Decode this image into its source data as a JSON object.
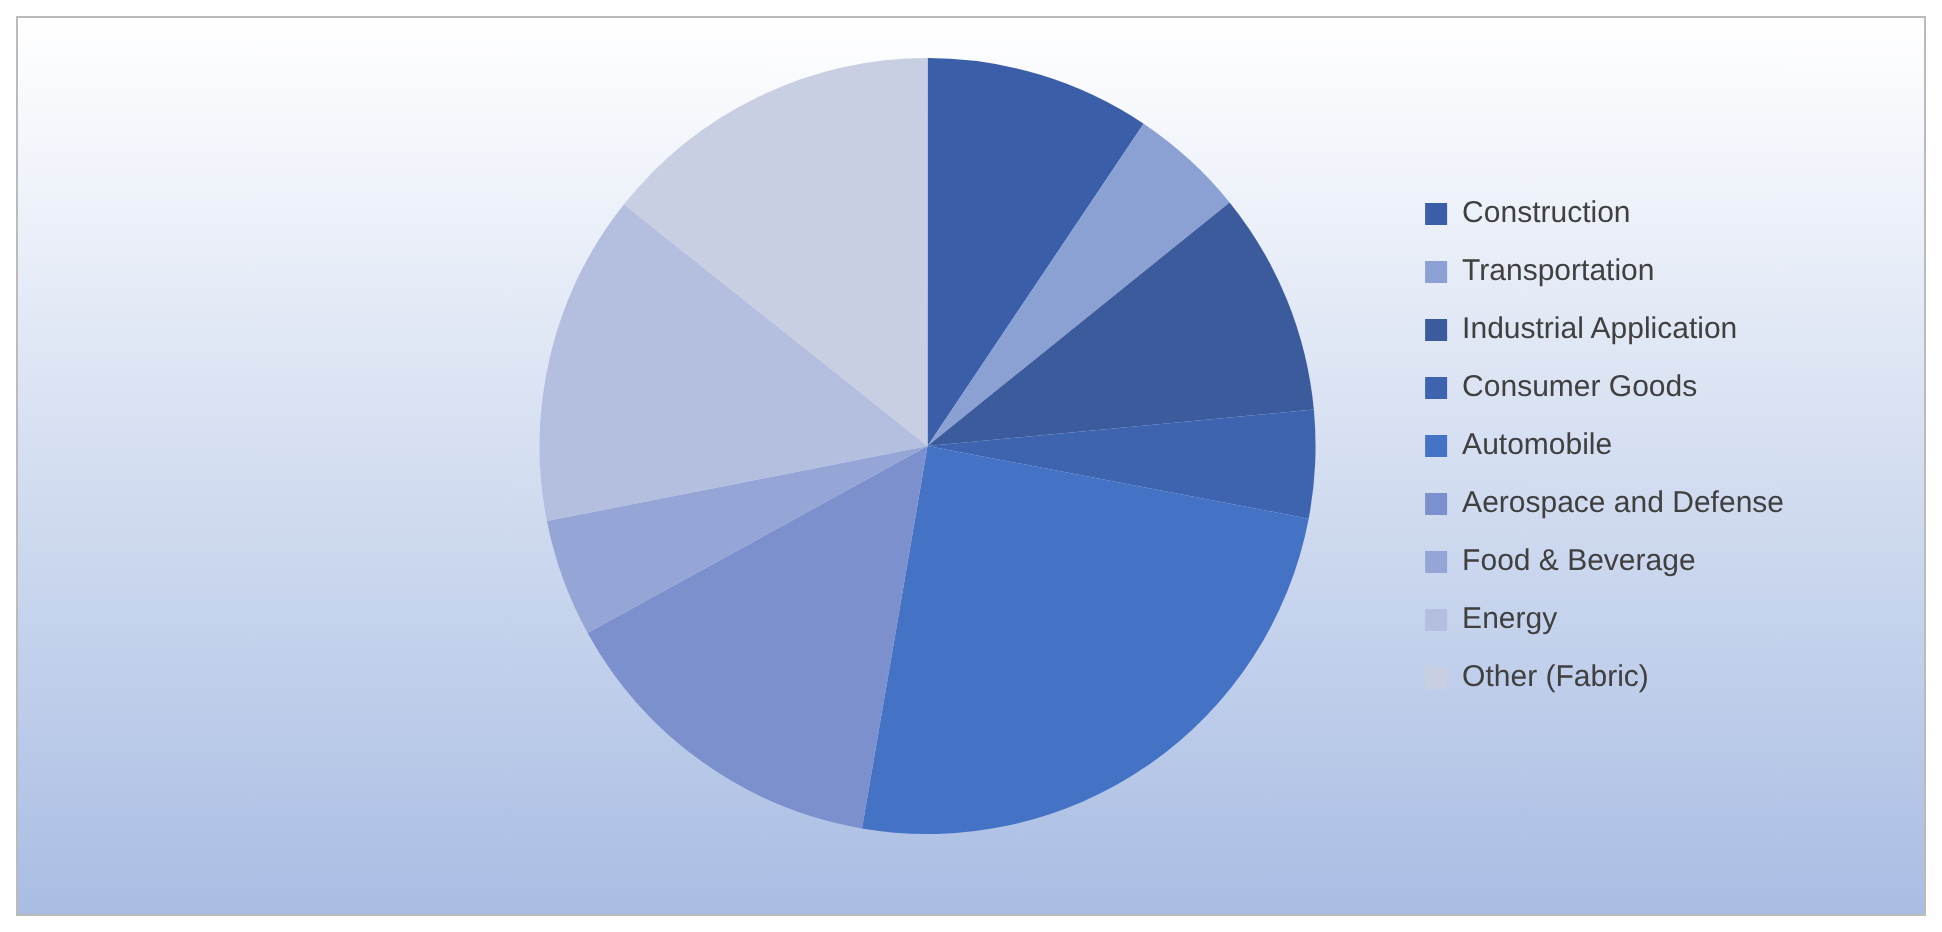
{
  "chart_data": {
    "type": "pie",
    "categories": [
      "Construction",
      "Transportation",
      "Industrial Application",
      "Consumer Goods",
      "Automobile",
      "Aerospace and Defense",
      "Food & Beverage",
      "Energy",
      "Other (Fabric)"
    ],
    "values": [
      9.4,
      4.8,
      9.3,
      4.5,
      24.7,
      14.3,
      4.9,
      13.8,
      14.3
    ],
    "colors": [
      "#3a5fa8",
      "#8ba1d4",
      "#3b5b9d",
      "#3e64b0",
      "#4472c4",
      "#7b90cc",
      "#95a6d6",
      "#b4bfe0",
      "#c8cfe3"
    ],
    "legend": "right"
  }
}
